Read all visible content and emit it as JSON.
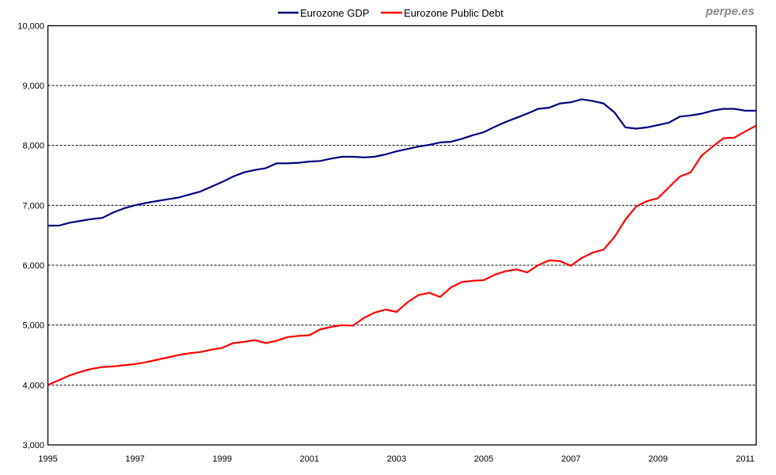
{
  "watermark": "perpe.es",
  "chart_data": {
    "type": "line",
    "title": "",
    "xlabel": "",
    "ylabel": "",
    "ylim": [
      3000,
      10000
    ],
    "yticks": [
      "3,000",
      "4,000",
      "5,000",
      "6,000",
      "7,000",
      "8,000",
      "9,000",
      "10,000"
    ],
    "xticks": [
      "1995",
      "1997",
      "1999",
      "2001",
      "2003",
      "2005",
      "2007",
      "2009",
      "2011"
    ],
    "x_start": "1995 Q1",
    "x_frequency": "quarterly",
    "grid": "horizontal dashed",
    "legend": "top",
    "series": [
      {
        "name": "Eurozone GDP",
        "color": "#000080",
        "values": [
          6660,
          6660,
          6710,
          6740,
          6770,
          6790,
          6880,
          6950,
          7000,
          7040,
          7070,
          7100,
          7130,
          7180,
          7230,
          7310,
          7390,
          7480,
          7550,
          7590,
          7620,
          7700,
          7700,
          7710,
          7730,
          7740,
          7780,
          7810,
          7810,
          7800,
          7810,
          7850,
          7900,
          7940,
          7980,
          8010,
          8050,
          8060,
          8110,
          8170,
          8220,
          8310,
          8390,
          8460,
          8530,
          8610,
          8630,
          8700,
          8720,
          8770,
          8740,
          8700,
          8550,
          8300,
          8280,
          8300,
          8340,
          8380,
          8480,
          8500,
          8530,
          8580,
          8610,
          8610,
          8580,
          8580
        ]
      },
      {
        "name": "Eurozone Public Debt",
        "color": "#ff0000",
        "values": [
          4000,
          4080,
          4160,
          4220,
          4270,
          4300,
          4310,
          4330,
          4350,
          4380,
          4420,
          4460,
          4500,
          4530,
          4550,
          4590,
          4620,
          4700,
          4720,
          4750,
          4700,
          4740,
          4800,
          4820,
          4830,
          4930,
          4970,
          5000,
          4990,
          5120,
          5210,
          5260,
          5220,
          5380,
          5500,
          5540,
          5470,
          5630,
          5720,
          5740,
          5750,
          5840,
          5900,
          5930,
          5880,
          6000,
          6080,
          6070,
          5990,
          6120,
          6210,
          6260,
          6470,
          6760,
          6980,
          7070,
          7120,
          7300,
          7480,
          7550,
          7830,
          7980,
          8120,
          8130,
          8230,
          8330
        ]
      }
    ]
  }
}
